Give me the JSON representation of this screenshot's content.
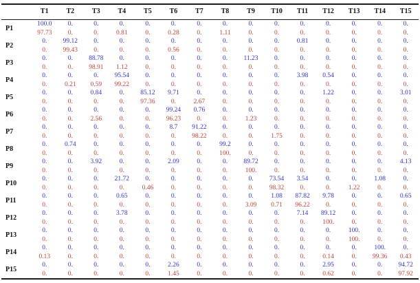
{
  "table": {
    "corner_label": "",
    "columns": [
      "T1",
      "T2",
      "T3",
      "T4",
      "T5",
      "T6",
      "T7",
      "T8",
      "T9",
      "T10",
      "T11",
      "T12",
      "T13",
      "T14",
      "T15"
    ],
    "rows": [
      {
        "label": "P1",
        "blue": [
          "100.0",
          "0.",
          "0.",
          "0.",
          "0.",
          "0.",
          "0.",
          "0.",
          "0.",
          "0.",
          "0.",
          "0.",
          "0.",
          "0.",
          "0."
        ],
        "red": [
          "97.73",
          "0.",
          "0.",
          "0.81",
          "0.",
          "0.28",
          "0.",
          "1.11",
          "0.",
          "0.",
          "0.",
          "0.",
          "0.",
          "0.",
          "0."
        ]
      },
      {
        "label": "P2",
        "blue": [
          "0.",
          "99.12",
          "0.",
          "0.",
          "0.",
          "0.",
          "0.",
          "0.",
          "0.",
          "0.",
          "0.81",
          "0.",
          "0.",
          "0.",
          "0."
        ],
        "red": [
          "0.",
          "99.43",
          "0.",
          "0.",
          "0.",
          "0.56",
          "0.",
          "0.",
          "0.",
          "0.",
          "0.",
          "0.",
          "0.",
          "0.",
          "0."
        ]
      },
      {
        "label": "P3",
        "blue": [
          "0.",
          "0.",
          "88.78",
          "0.",
          "0.",
          "0.",
          "0.",
          "0.",
          "11.23",
          "0.",
          "0.",
          "0.",
          "0.",
          "0.",
          "0."
        ],
        "red": [
          "0.",
          "0.",
          "98.91",
          "1.12",
          "0.",
          "0.",
          "0.",
          "0.",
          "0.",
          "0.",
          "0.",
          "0.",
          "0.",
          "0.",
          "0."
        ]
      },
      {
        "label": "P4",
        "blue": [
          "0.",
          "0.",
          "0.",
          "95.54",
          "0.",
          "0.",
          "0.",
          "0.",
          "0.",
          "0.",
          "3.98",
          "0.54",
          "0.",
          "0.",
          "0."
        ],
        "red": [
          "0.",
          "0.21",
          "0.59",
          "99.22",
          "0.",
          "0.",
          "0.",
          "0.",
          "0.",
          "0.",
          "0.",
          "0.",
          "0.",
          "0.",
          "0."
        ]
      },
      {
        "label": "P5",
        "blue": [
          "0.",
          "0.",
          "0.84",
          "0.",
          "85.12",
          "9.71",
          "0.",
          "0.",
          "0.",
          "0.",
          "0.",
          "1.22",
          "0.",
          "0.",
          "3.01"
        ],
        "red": [
          "0.",
          "0.",
          "0.",
          "0.",
          "97.36",
          "0.",
          "2.67",
          "0.",
          "0.",
          "0.",
          "0.",
          "0.",
          "0.",
          "0.",
          "0."
        ]
      },
      {
        "label": "P6",
        "blue": [
          "0.",
          "0.",
          "0.",
          "0.",
          "0.",
          "99.24",
          "0.76",
          "0.",
          "0.",
          "0.",
          "0.",
          "0.",
          "0.",
          "0.",
          "0."
        ],
        "red": [
          "0.",
          "0.",
          "2.56",
          "0.",
          "0.",
          "96.23",
          "0.",
          "0.",
          "1.23",
          "0.",
          "0.",
          "0.",
          "0.",
          "0.",
          "0."
        ]
      },
      {
        "label": "P7",
        "blue": [
          "0.",
          "0.",
          "0.",
          "0.",
          "0.",
          "8.7",
          "91.22",
          "0.",
          "0.",
          "0.",
          "0.",
          "0.",
          "0.",
          "0.",
          "0."
        ],
        "red": [
          "0.",
          "0.",
          "0.",
          "0.",
          "0.",
          "0.",
          "98.22",
          "0.",
          "0.",
          "1.75",
          "0.",
          "0.",
          "0.",
          "0.",
          "0."
        ]
      },
      {
        "label": "P8",
        "blue": [
          "0.",
          "0.74",
          "0.",
          "0.",
          "0.",
          "0.",
          "0.",
          "99.2",
          "0.",
          "0.",
          "0.",
          "0.",
          "0.",
          "0.",
          "0."
        ],
        "red": [
          "0.",
          "0.",
          "0.",
          "0.",
          "0.",
          "0.",
          "0.",
          "100.",
          "0.",
          "0.",
          "0.",
          "0.",
          "0.",
          "0.",
          "0."
        ]
      },
      {
        "label": "P9",
        "blue": [
          "0.",
          "0.",
          "3.92",
          "0.",
          "0.",
          "2.09",
          "0.",
          "0.",
          "89.72",
          "0.",
          "0.",
          "0.",
          "0.",
          "0.",
          "4.13"
        ],
        "red": [
          "0.",
          "0.",
          "0.",
          "0.",
          "0.",
          "0.",
          "0.",
          "0.",
          "100.",
          "0.",
          "0.",
          "0.",
          "0.",
          "0.",
          "0."
        ]
      },
      {
        "label": "P10",
        "blue": [
          "0.",
          "0.",
          "0.",
          "21.72",
          "0.",
          "0.",
          "0.",
          "0.",
          "0.",
          "73.54",
          "3.54",
          "0.",
          "0.",
          "1.08",
          "0."
        ],
        "red": [
          "0.",
          "0.",
          "0.",
          "0.",
          "0.46",
          "0.",
          "0.",
          "0.",
          "0.",
          "98.32",
          "0.",
          "0.",
          "1.22",
          "0.",
          "0."
        ]
      },
      {
        "label": "P11",
        "blue": [
          "0.",
          "0.",
          "0.",
          "0.65",
          "0.",
          "0.",
          "0.",
          "0.",
          "0.",
          "1.08",
          "87.82",
          "9.78",
          "0.",
          "0.",
          "0.65"
        ],
        "red": [
          "0.",
          "0.",
          "0.",
          "0.",
          "0.",
          "0.",
          "0.",
          "0.",
          "3.09",
          "0.71",
          "96.22",
          "0.",
          "0.",
          "0.",
          "0."
        ]
      },
      {
        "label": "P12",
        "blue": [
          "0.",
          "0.",
          "0.",
          "3.78",
          "0.",
          "0.",
          "0.",
          "0.",
          "0.",
          "0.",
          "7.14",
          "89.12",
          "0.",
          "0.",
          "0."
        ],
        "red": [
          "0.",
          "0.",
          "0.",
          "0.",
          "0.",
          "0.",
          "0.",
          "0.",
          "0.",
          "0.",
          "0.",
          "100.",
          "0.",
          "0.",
          "0."
        ]
      },
      {
        "label": "P13",
        "blue": [
          "0.",
          "0.",
          "0.",
          "0.",
          "0.",
          "0.",
          "0.",
          "0.",
          "0.",
          "0.",
          "0.",
          "0.",
          "100.",
          "0.",
          "0."
        ],
        "red": [
          "0.",
          "0.",
          "0.",
          "0.",
          "0.",
          "0.",
          "0.",
          "0.",
          "0.",
          "0.",
          "0.",
          "0.",
          "100.",
          "0.",
          "0."
        ]
      },
      {
        "label": "P14",
        "blue": [
          "0.",
          "0.",
          "0.",
          "0.",
          "0.",
          "0.",
          "0.",
          "0.",
          "0.",
          "0.",
          "0.",
          "0.",
          "0.",
          "100.",
          "0."
        ],
        "red": [
          "0.13",
          "0.",
          "0.",
          "0.",
          "0.",
          "0.",
          "0.",
          "0.",
          "0.",
          "0.",
          "0.",
          "0.14",
          "0.",
          "99.36",
          "0.43"
        ]
      },
      {
        "label": "P15",
        "blue": [
          "0.",
          "0.",
          "0.",
          "0.",
          "0.",
          "2.26",
          "0.",
          "0.",
          "0.",
          "0.",
          "0.",
          "2.95",
          "0.",
          "0.",
          "94.72"
        ],
        "red": [
          "0.",
          "0.",
          "0.",
          "0.",
          "0.",
          "1.45",
          "0.",
          "0.",
          "0.",
          "0.",
          "0.",
          "0.62",
          "0.",
          "0.",
          "97.92"
        ]
      }
    ],
    "colors": {
      "blue_series": "#3333cc",
      "red_series": "#c0453a",
      "rule": "#1c1c1c"
    }
  }
}
